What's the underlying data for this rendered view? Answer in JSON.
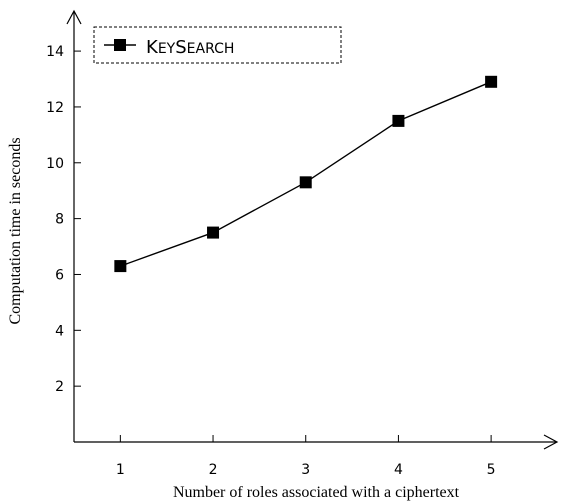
{
  "chart_data": {
    "type": "line",
    "x": [
      1,
      2,
      3,
      4,
      5
    ],
    "series": [
      {
        "name": "KeySearch",
        "values": [
          6.3,
          7.5,
          9.3,
          11.5,
          12.9
        ]
      }
    ],
    "xlabel": "Number of roles associated with a ciphertext",
    "ylabel": "Computation time in seconds",
    "xticks": [
      "1",
      "2",
      "3",
      "4",
      "5"
    ],
    "yticks": [
      "2",
      "4",
      "6",
      "8",
      "10",
      "12",
      "14"
    ],
    "xlim": [
      0.5,
      5.7
    ],
    "ylim": [
      0,
      15.4
    ],
    "grid": false,
    "legend": {
      "position": "top-left",
      "entries": [
        "KeySearch"
      ]
    },
    "colors": {
      "line": "#000000",
      "marker": "#000000"
    }
  }
}
